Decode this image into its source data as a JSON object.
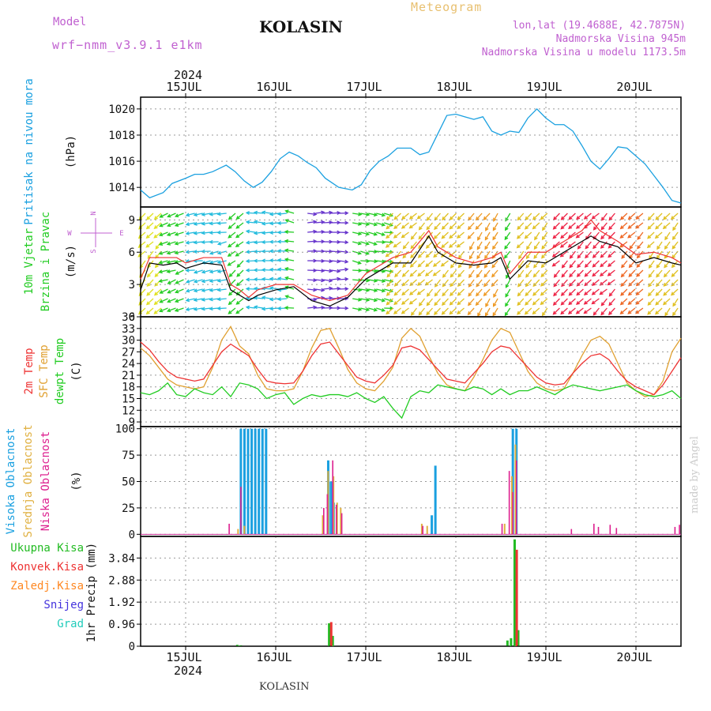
{
  "header": {
    "model_label": "Model",
    "model_value": "wrf−nmm_v3.9.1  e1km",
    "station": "KOLASIN",
    "title": "Meteogram",
    "coords": "lon,lat (19.4688E, 42.7875N)",
    "elevation": "Nadmorska Visina 945m",
    "model_elevation": "Nadmorska Visina u modelu 1173.5m",
    "year_top": "2024"
  },
  "footer": {
    "station": "KOLASIN",
    "year_bottom": "2024",
    "credit": "made by Angel"
  },
  "days": [
    "15JUL",
    "16JUL",
    "17JUL",
    "18JUL",
    "19JUL",
    "20JUL"
  ],
  "colors": {
    "pressure": "#1aa0e0",
    "temp2m": "#ee3333",
    "sfc_temp": "#e0a030",
    "dewpoint": "#22cc22",
    "cloud_high": "#1aa0e0",
    "cloud_mid": "#e0b040",
    "cloud_low": "#dd1f8f",
    "precip_total": "#22bb22",
    "precip_conv": "#ee3333",
    "precip_frozen": "#ff8822",
    "snow": "#4433dd",
    "hail": "#22ccbb",
    "wind_black": "#000000"
  },
  "chart_data": [
    {
      "type": "line",
      "panel": "pressure",
      "ylabel": [
        "Pritisak na nivou mora",
        "(hPa)"
      ],
      "yticks": [
        1014,
        1016,
        1018,
        1020
      ],
      "ylim": [
        1012.5,
        1020.9
      ],
      "x": [
        14.5,
        14.6,
        14.75,
        14.85,
        15.0,
        15.1,
        15.2,
        15.3,
        15.45,
        15.55,
        15.65,
        15.75,
        15.85,
        15.95,
        16.05,
        16.15,
        16.25,
        16.35,
        16.45,
        16.55,
        16.7,
        16.85,
        16.95,
        17.05,
        17.15,
        17.25,
        17.35,
        17.5,
        17.6,
        17.7,
        17.8,
        17.9,
        18.0,
        18.1,
        18.2,
        18.3,
        18.4,
        18.5,
        18.6,
        18.7,
        18.8,
        18.9,
        19.0,
        19.1,
        19.2,
        19.3,
        19.4,
        19.5,
        19.6,
        19.7,
        19.8,
        19.9,
        20.0,
        20.1,
        20.2,
        20.3,
        20.4,
        20.5
      ],
      "series": [
        {
          "values": [
            1013.8,
            1013.2,
            1013.6,
            1014.3,
            1014.7,
            1015.0,
            1015.0,
            1015.2,
            1015.7,
            1015.2,
            1014.5,
            1014.0,
            1014.4,
            1015.2,
            1016.2,
            1016.7,
            1016.4,
            1015.9,
            1015.5,
            1014.7,
            1014.0,
            1013.8,
            1014.2,
            1015.3,
            1016.0,
            1016.4,
            1017.0,
            1017.0,
            1016.5,
            1016.7,
            1018.1,
            1019.5,
            1019.6,
            1019.4,
            1019.2,
            1019.4,
            1018.3,
            1018.0,
            1018.3,
            1018.2,
            1019.3,
            1020.0,
            1019.3,
            1018.8,
            1018.8,
            1018.3,
            1017.2,
            1016.0,
            1015.4,
            1016.2,
            1017.1,
            1017.0,
            1016.4,
            1015.8,
            1014.9,
            1014.0,
            1013.0,
            1012.8
          ]
        }
      ]
    },
    {
      "type": "line",
      "panel": "wind",
      "ylabel": [
        "10m Vjetar",
        "Brzina i Pravac",
        "(m/s)"
      ],
      "compass": [
        "N",
        "S",
        "W",
        "E"
      ],
      "yticks": [
        0,
        3,
        6,
        9
      ],
      "ylim": [
        0,
        10.2
      ],
      "x": [
        14.5,
        14.6,
        14.75,
        14.9,
        15.0,
        15.2,
        15.4,
        15.5,
        15.6,
        15.7,
        15.8,
        16.0,
        16.2,
        16.4,
        16.6,
        16.8,
        17.0,
        17.2,
        17.3,
        17.5,
        17.7,
        17.8,
        18.0,
        18.2,
        18.4,
        18.5,
        18.6,
        18.8,
        19.0,
        19.2,
        19.4,
        19.5,
        19.6,
        19.8,
        20.0,
        20.2,
        20.4,
        20.5
      ],
      "series": [
        {
          "name": "speed",
          "values": [
            2.5,
            5.0,
            4.8,
            5.0,
            4.5,
            5.0,
            4.8,
            2.5,
            2.0,
            1.5,
            2.0,
            2.5,
            2.8,
            1.5,
            1.0,
            1.8,
            3.5,
            4.5,
            5.0,
            5.0,
            7.5,
            6.0,
            5.0,
            4.8,
            5.0,
            5.5,
            3.5,
            5.2,
            5.0,
            6.0,
            7.0,
            7.5,
            7.0,
            6.5,
            5.0,
            5.5,
            5.0,
            4.8
          ]
        },
        {
          "name": "gust",
          "values": [
            3.5,
            5.5,
            5.5,
            5.5,
            5.0,
            5.5,
            5.5,
            3.0,
            2.5,
            1.8,
            2.5,
            3.0,
            3.0,
            2.0,
            1.5,
            2.0,
            4.0,
            5.0,
            5.5,
            6.0,
            8.0,
            6.5,
            5.5,
            5.0,
            5.5,
            6.0,
            4.0,
            6.0,
            6.0,
            7.0,
            8.0,
            9.0,
            8.0,
            7.0,
            5.8,
            6.0,
            5.5,
            5.0
          ]
        }
      ],
      "arrow_bands": [
        {
          "from": 14.5,
          "to": 14.75,
          "color": "#e0e020",
          "direction": 225
        },
        {
          "from": 14.75,
          "to": 15.05,
          "color": "#22cc22",
          "direction": 250
        },
        {
          "from": 15.05,
          "to": 15.5,
          "color": "#22bbdd",
          "direction": 260
        },
        {
          "from": 15.5,
          "to": 15.72,
          "color": "#22cc22",
          "direction": 230
        },
        {
          "from": 15.72,
          "to": 16.15,
          "color": "#22bbdd",
          "direction": 270
        },
        {
          "from": 16.15,
          "to": 16.3,
          "color": "#22cc22",
          "direction": 280
        },
        {
          "from": 16.3,
          "to": 16.8,
          "color": "#6633cc",
          "direction": 90
        },
        {
          "from": 16.8,
          "to": 17.25,
          "color": "#22cc22",
          "direction": 100
        },
        {
          "from": 17.25,
          "to": 18.15,
          "color": "#e0c020",
          "direction": 225
        },
        {
          "from": 18.15,
          "to": 18.55,
          "color": "#ee9922",
          "direction": 215
        },
        {
          "from": 18.55,
          "to": 18.7,
          "color": "#22cc22",
          "direction": 210
        },
        {
          "from": 18.7,
          "to": 19.1,
          "color": "#e0c020",
          "direction": 220
        },
        {
          "from": 19.1,
          "to": 19.85,
          "color": "#ee2244",
          "direction": 225
        },
        {
          "from": 19.85,
          "to": 20.15,
          "color": "#ee6622",
          "direction": 225
        },
        {
          "from": 20.15,
          "to": 20.5,
          "color": "#e0c020",
          "direction": 220
        }
      ]
    },
    {
      "type": "line",
      "panel": "temperature",
      "ylabel": [
        "2m Temp",
        "SFC Temp",
        "dewpt Temp",
        "(C)"
      ],
      "yticks": [
        9,
        12,
        15,
        18,
        21,
        24,
        27,
        30,
        33,
        36
      ],
      "ylim": [
        7.8,
        36
      ],
      "x": [
        14.5,
        14.6,
        14.7,
        14.8,
        14.9,
        15.0,
        15.1,
        15.2,
        15.3,
        15.4,
        15.5,
        15.6,
        15.7,
        15.8,
        15.9,
        16.0,
        16.1,
        16.2,
        16.3,
        16.4,
        16.5,
        16.6,
        16.7,
        16.8,
        16.9,
        17.0,
        17.1,
        17.2,
        17.3,
        17.4,
        17.5,
        17.6,
        17.7,
        17.8,
        17.9,
        18.0,
        18.1,
        18.2,
        18.3,
        18.4,
        18.5,
        18.6,
        18.7,
        18.8,
        18.9,
        19.0,
        19.1,
        19.2,
        19.3,
        19.4,
        19.5,
        19.6,
        19.7,
        19.8,
        19.9,
        20.0,
        20.1,
        20.2,
        20.3,
        20.4,
        20.5
      ],
      "series": [
        {
          "name": "2m Temp",
          "values": [
            29.5,
            27.5,
            24.5,
            22.0,
            20.5,
            20.0,
            19.5,
            20.0,
            23.5,
            27.0,
            29.0,
            27.5,
            26.0,
            22.5,
            19.5,
            19.0,
            18.8,
            19.0,
            22.0,
            26.0,
            29.0,
            29.5,
            26.5,
            23.5,
            20.5,
            19.5,
            19.0,
            21.0,
            23.5,
            28.0,
            28.5,
            27.5,
            25.0,
            22.5,
            20.0,
            19.5,
            19.0,
            21.5,
            24.0,
            27.0,
            28.5,
            28.0,
            25.5,
            23.0,
            20.5,
            19.0,
            18.5,
            18.8,
            21.5,
            24.0,
            26.0,
            26.5,
            25.0,
            22.0,
            19.5,
            18.0,
            17.0,
            16.0,
            18.5,
            22.0,
            25.5
          ]
        },
        {
          "name": "SFC Temp",
          "values": [
            28.0,
            26.0,
            23.0,
            20.0,
            18.5,
            18.0,
            17.5,
            18.0,
            23.0,
            30.0,
            33.5,
            28.5,
            26.5,
            21.0,
            17.5,
            17.0,
            17.0,
            17.5,
            22.0,
            28.0,
            32.5,
            33.0,
            28.0,
            22.5,
            19.0,
            17.5,
            17.0,
            19.5,
            23.0,
            30.5,
            33.0,
            31.0,
            26.0,
            21.5,
            18.5,
            17.5,
            17.0,
            20.5,
            25.0,
            30.0,
            33.0,
            32.0,
            27.0,
            22.0,
            19.0,
            17.5,
            17.0,
            17.5,
            21.5,
            26.0,
            30.0,
            31.0,
            29.0,
            24.0,
            19.0,
            17.0,
            15.5,
            16.0,
            19.5,
            27.0,
            30.5
          ]
        },
        {
          "name": "dewpt Temp",
          "values": [
            16.5,
            16.0,
            17.0,
            19.0,
            16.0,
            15.5,
            17.5,
            16.5,
            16.0,
            18.0,
            15.5,
            19.0,
            18.5,
            17.5,
            15.0,
            16.0,
            16.5,
            13.5,
            15.0,
            16.0,
            15.5,
            16.0,
            16.0,
            15.5,
            16.5,
            15.0,
            14.0,
            15.5,
            12.5,
            10.0,
            15.5,
            17.0,
            16.5,
            18.5,
            18.0,
            17.5,
            17.0,
            18.0,
            17.5,
            16.0,
            17.5,
            16.0,
            17.0,
            17.0,
            18.0,
            17.0,
            16.0,
            17.5,
            18.5,
            18.0,
            17.5,
            17.0,
            17.5,
            18.0,
            18.5,
            17.0,
            16.0,
            15.5,
            16.0,
            17.0,
            15.0
          ]
        }
      ]
    },
    {
      "type": "bar",
      "panel": "clouds",
      "ylabel": [
        "Visoka Oblacnost",
        "Srednja Oblacnost",
        "Niska Oblacnost",
        "(%)"
      ],
      "yticks": [
        0,
        25,
        50,
        75,
        100
      ],
      "ylim": [
        -2,
        102
      ],
      "series": [
        {
          "name": "Visoka Oblacnost",
          "points": [
            [
              15.6,
              100
            ],
            [
              15.64,
              100
            ],
            [
              15.68,
              100
            ],
            [
              15.72,
              100
            ],
            [
              15.76,
              100
            ],
            [
              15.8,
              100
            ],
            [
              15.84,
              100
            ],
            [
              15.88,
              100
            ],
            [
              16.57,
              70
            ],
            [
              16.6,
              50
            ],
            [
              16.63,
              30
            ],
            [
              17.76,
              65
            ],
            [
              17.72,
              18
            ],
            [
              18.62,
              100
            ],
            [
              18.66,
              100
            ]
          ]
        },
        {
          "name": "Srednja Oblacnost",
          "points": [
            [
              15.56,
              5
            ],
            [
              15.63,
              8
            ],
            [
              16.5,
              18
            ],
            [
              16.56,
              60
            ],
            [
              16.62,
              55
            ],
            [
              16.66,
              30
            ],
            [
              16.7,
              25
            ],
            [
              17.6,
              10
            ],
            [
              17.66,
              8
            ],
            [
              18.52,
              10
            ],
            [
              18.6,
              55
            ],
            [
              18.64,
              85
            ]
          ]
        },
        {
          "name": "Niska Oblacnost",
          "points": [
            [
              15.45,
              10
            ],
            [
              15.58,
              45
            ],
            [
              16.5,
              25
            ],
            [
              16.54,
              38
            ],
            [
              16.6,
              70
            ],
            [
              16.64,
              28
            ],
            [
              16.7,
              20
            ],
            [
              17.6,
              8
            ],
            [
              18.48,
              10
            ],
            [
              18.56,
              60
            ],
            [
              18.6,
              40
            ],
            [
              18.64,
              70
            ],
            [
              19.25,
              5
            ],
            [
              19.5,
              10
            ],
            [
              19.55,
              7
            ],
            [
              19.68,
              9
            ],
            [
              19.75,
              6
            ],
            [
              20.4,
              7
            ],
            [
              20.45,
              9
            ]
          ]
        }
      ]
    },
    {
      "type": "bar",
      "panel": "precipitation",
      "ylabel": [
        "1hr Precip (mm)"
      ],
      "legend": [
        "Ukupna Kisa",
        "Konvek.Kisa",
        "Zaledj.Kisa",
        "Snijeg",
        "Grad"
      ],
      "yticks": [
        0,
        0.96,
        1.92,
        2.88,
        3.84
      ],
      "ylim": [
        0,
        4.78
      ],
      "series": [
        {
          "name": "Ukupna Kisa",
          "points": [
            [
              15.56,
              0.06
            ],
            [
              15.6,
              0.04
            ],
            [
              16.58,
              1.0
            ],
            [
              16.62,
              0.45
            ],
            [
              18.56,
              0.25
            ],
            [
              18.6,
              0.35
            ],
            [
              18.64,
              4.65
            ],
            [
              18.68,
              0.7
            ]
          ]
        },
        {
          "name": "Konvek.Kisa",
          "points": [
            [
              16.59,
              1.05
            ],
            [
              18.65,
              4.2
            ]
          ]
        }
      ]
    }
  ]
}
